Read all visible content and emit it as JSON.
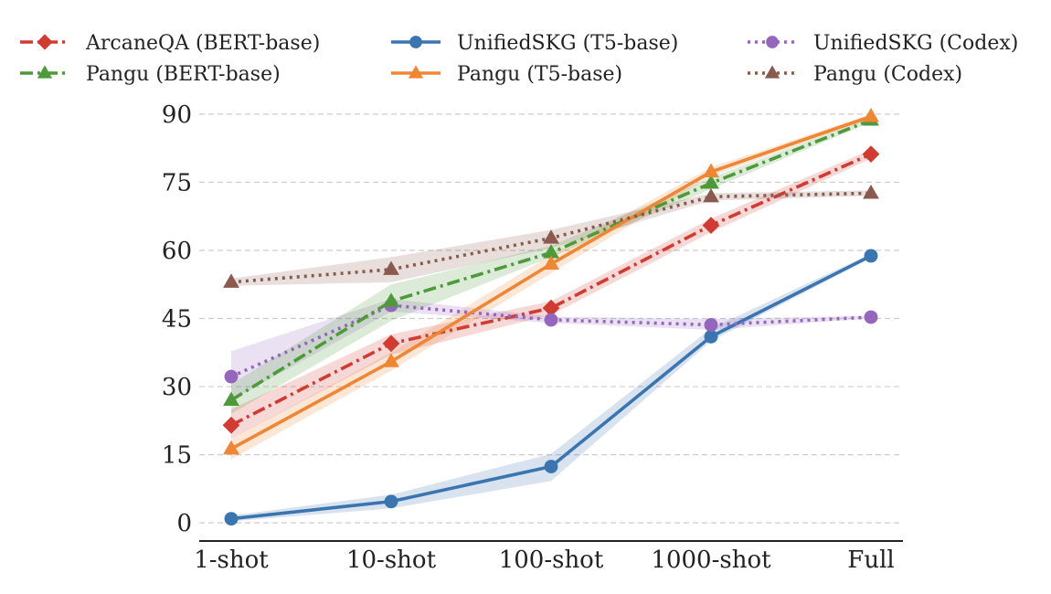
{
  "chart_data": {
    "type": "line",
    "title": "",
    "xlabel": "",
    "ylabel": "",
    "categories": [
      "1-shot",
      "10-shot",
      "100-shot",
      "1000-shot",
      "Full"
    ],
    "y_ticks": [
      0,
      15,
      30,
      45,
      60,
      75,
      90
    ],
    "ylim": [
      -4,
      93
    ],
    "grid": "horizontal dashed",
    "legend_position": "top",
    "series": [
      {
        "name": "ArcaneQA (BERT-base)",
        "color": "#d03b32",
        "marker": "diamond",
        "line_style": "dashdot",
        "values": [
          21.5,
          39.5,
          47.3,
          65.5,
          81.2
        ],
        "band_low": [
          18.5,
          37.0,
          45.8,
          64.0,
          80.2
        ],
        "band_high": [
          25.0,
          41.5,
          48.8,
          67.0,
          82.2
        ]
      },
      {
        "name": "UnifiedSKG (T5-base)",
        "color": "#3a75b0",
        "marker": "circle",
        "line_style": "solid",
        "values": [
          0.9,
          4.7,
          12.4,
          41.0,
          58.8
        ],
        "band_low": [
          0.3,
          3.2,
          9.2,
          40.0,
          58.3
        ],
        "band_high": [
          1.6,
          6.2,
          15.2,
          42.8,
          59.3
        ]
      },
      {
        "name": "UnifiedSKG (Codex)",
        "color": "#9467bd",
        "marker": "circle",
        "line_style": "dotted",
        "values": [
          32.2,
          47.9,
          44.7,
          43.6,
          45.3
        ],
        "band_low": [
          27.0,
          46.5,
          44.0,
          42.5,
          45.0
        ],
        "band_high": [
          37.8,
          49.3,
          45.4,
          44.9,
          45.6
        ]
      },
      {
        "name": "Pangu (BERT-base)",
        "color": "#4e9a3b",
        "marker": "triangle",
        "line_style": "dashdot",
        "values": [
          27.0,
          48.8,
          59.5,
          74.8,
          88.7
        ],
        "band_low": [
          24.0,
          44.5,
          58.5,
          73.5,
          88.2
        ],
        "band_high": [
          30.5,
          52.5,
          61.0,
          76.0,
          89.2
        ]
      },
      {
        "name": "Pangu (T5-base)",
        "color": "#ef8636",
        "marker": "triangle",
        "line_style": "solid",
        "values": [
          16.3,
          35.5,
          57.0,
          77.3,
          89.5
        ],
        "band_low": [
          14.0,
          33.5,
          55.0,
          76.3,
          89.0
        ],
        "band_high": [
          18.5,
          37.5,
          59.0,
          78.3,
          90.0
        ]
      },
      {
        "name": "Pangu (Codex)",
        "color": "#8b5a4f",
        "marker": "triangle",
        "line_style": "dotted",
        "values": [
          53.0,
          55.8,
          62.7,
          71.8,
          72.6
        ],
        "band_low": [
          52.2,
          53.0,
          60.5,
          71.0,
          72.0
        ],
        "band_high": [
          53.8,
          58.5,
          64.5,
          72.6,
          73.2
        ]
      }
    ],
    "legend_order": [
      0,
      3,
      1,
      4,
      2,
      5
    ]
  }
}
